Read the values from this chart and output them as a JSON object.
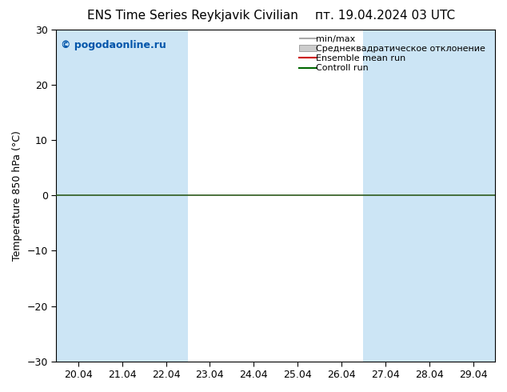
{
  "title_left": "ENS Time Series Reykjavik Civilian",
  "title_right": "пт. 19.04.2024 03 UTC",
  "ylabel": "Temperature 850 hPa (°C)",
  "watermark": "© pogodaonline.ru",
  "x_labels": [
    "20.04",
    "21.04",
    "22.04",
    "23.04",
    "24.04",
    "25.04",
    "26.04",
    "27.04",
    "28.04",
    "29.04"
  ],
  "x_values": [
    0,
    1,
    2,
    3,
    4,
    5,
    6,
    7,
    8,
    9
  ],
  "ylim": [
    -30,
    30
  ],
  "yticks": [
    -30,
    -20,
    -10,
    0,
    10,
    20,
    30
  ],
  "fig_bg_color": "#ffffff",
  "plot_bg_color": "#ffffff",
  "shaded_columns": [
    0,
    1,
    2,
    7,
    8,
    9
  ],
  "shaded_color": "#cce5f5",
  "legend_labels": [
    "min/max",
    "Среднеквадратическое отклонение",
    "Ensemble mean run",
    "Controll run"
  ],
  "legend_line_colors": [
    "#aaaaaa",
    "#cccccc",
    "#cc0000",
    "#006600"
  ],
  "zero_line_color": "#2d5a1b",
  "zero_line_y": 0,
  "font_size_title": 11,
  "font_size_axis": 9,
  "font_size_legend": 8,
  "font_size_watermark": 9,
  "watermark_color": "#0055aa"
}
